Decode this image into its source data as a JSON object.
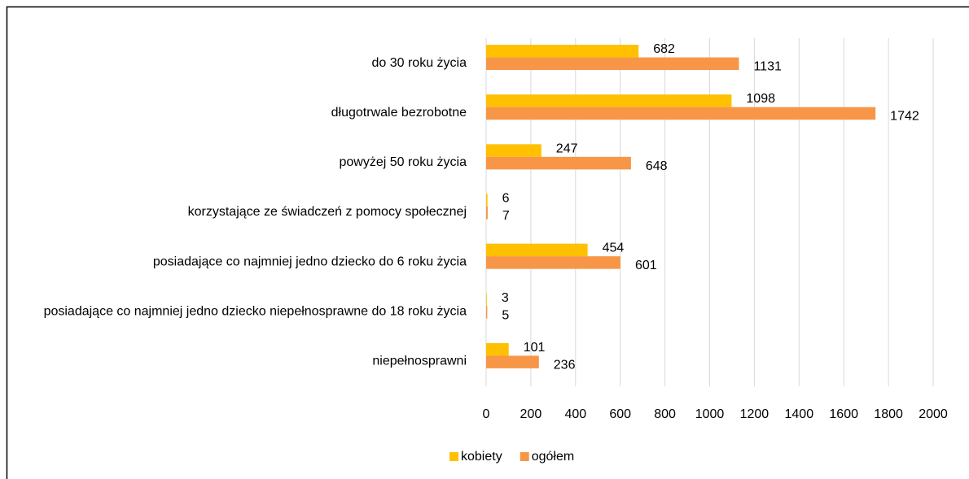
{
  "chart_data": {
    "type": "bar",
    "orientation": "horizontal",
    "categories": [
      "do 30 roku życia",
      "długotrwale bezrobotne",
      "powyżej 50 roku życia",
      "korzystające ze świadczeń z pomocy społecznej",
      "posiadające co najmniej jedno dziecko do 6 roku życia",
      "posiadające co najmniej jedno dziecko niepełnosprawne do 18 roku życia",
      "niepełnosprawni"
    ],
    "series": [
      {
        "name": "kobiety",
        "color": "#ffc000",
        "values": [
          682,
          1098,
          247,
          6,
          454,
          3,
          101
        ]
      },
      {
        "name": "ogółem",
        "color": "#f79646",
        "values": [
          1131,
          1742,
          648,
          7,
          601,
          5,
          236
        ]
      }
    ],
    "xlim": [
      0,
      2000
    ],
    "xticks": [
      0,
      200,
      400,
      600,
      800,
      1000,
      1200,
      1400,
      1600,
      1800,
      2000
    ],
    "grid": true,
    "legend": "bottom"
  }
}
